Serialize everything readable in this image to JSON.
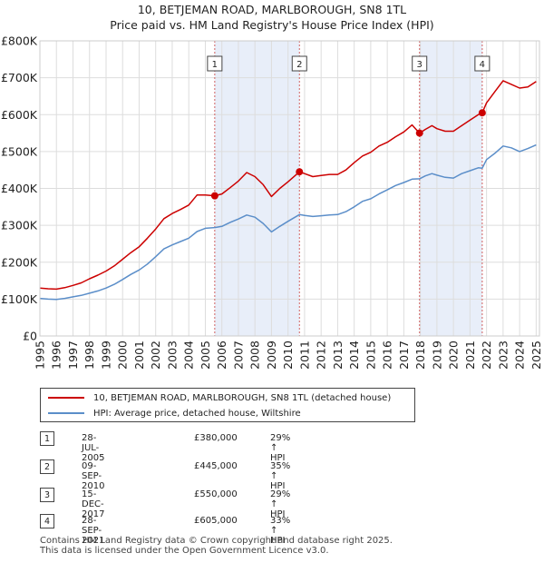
{
  "title": "10, BETJEMAN ROAD, MARLBOROUGH, SN8 1TL",
  "subtitle": "Price paid vs. HM Land Registry's House Price Index (HPI)",
  "chart_data": {
    "type": "line",
    "xlim": [
      1995,
      2025.2
    ],
    "ylim": [
      0,
      800000
    ],
    "yticks": [
      {
        "value": 0,
        "label": "£0"
      },
      {
        "value": 100000,
        "label": "£100K"
      },
      {
        "value": 200000,
        "label": "£200K"
      },
      {
        "value": 300000,
        "label": "£300K"
      },
      {
        "value": 400000,
        "label": "£400K"
      },
      {
        "value": 500000,
        "label": "£500K"
      },
      {
        "value": 600000,
        "label": "£600K"
      },
      {
        "value": 700000,
        "label": "£700K"
      },
      {
        "value": 800000,
        "label": "£800K"
      }
    ],
    "xticks": [
      "1995",
      "1996",
      "1997",
      "1998",
      "1999",
      "2000",
      "2001",
      "2002",
      "2003",
      "2004",
      "2005",
      "2006",
      "2007",
      "2008",
      "2009",
      "2010",
      "2011",
      "2012",
      "2013",
      "2014",
      "2015",
      "2016",
      "2017",
      "2018",
      "2019",
      "2020",
      "2021",
      "2022",
      "2023",
      "2024",
      "2025"
    ],
    "shaded_ranges": [
      [
        2005.57,
        2010.69
      ],
      [
        2017.95,
        2021.74
      ]
    ],
    "colors": {
      "property": "#cc0000",
      "hpi": "#5b8ec9",
      "shade": "#e8eef9",
      "vline": "#d06060",
      "grid": "#dddddd"
    },
    "series": [
      {
        "name": "10, BETJEMAN ROAD, MARLBOROUGH, SN8 1TL (detached house)",
        "points": [
          [
            1995.0,
            130000
          ],
          [
            1995.5,
            128000
          ],
          [
            1996.0,
            127000
          ],
          [
            1996.5,
            131000
          ],
          [
            1997.0,
            137000
          ],
          [
            1997.5,
            144000
          ],
          [
            1998.0,
            155000
          ],
          [
            1998.5,
            165000
          ],
          [
            1999.0,
            176000
          ],
          [
            1999.5,
            190000
          ],
          [
            2000.0,
            208000
          ],
          [
            2000.5,
            226000
          ],
          [
            2001.0,
            242000
          ],
          [
            2001.5,
            265000
          ],
          [
            2002.0,
            290000
          ],
          [
            2002.5,
            318000
          ],
          [
            2003.0,
            332000
          ],
          [
            2003.5,
            343000
          ],
          [
            2004.0,
            355000
          ],
          [
            2004.5,
            382000
          ],
          [
            2005.0,
            382000
          ],
          [
            2005.57,
            380000
          ],
          [
            2006.0,
            385000
          ],
          [
            2006.5,
            402000
          ],
          [
            2007.0,
            420000
          ],
          [
            2007.5,
            443000
          ],
          [
            2008.0,
            432000
          ],
          [
            2008.5,
            410000
          ],
          [
            2009.0,
            378000
          ],
          [
            2009.5,
            400000
          ],
          [
            2010.0,
            418000
          ],
          [
            2010.69,
            445000
          ],
          [
            2011.0,
            440000
          ],
          [
            2011.5,
            432000
          ],
          [
            2012.0,
            435000
          ],
          [
            2012.5,
            438000
          ],
          [
            2013.0,
            438000
          ],
          [
            2013.5,
            450000
          ],
          [
            2014.0,
            470000
          ],
          [
            2014.5,
            488000
          ],
          [
            2015.0,
            498000
          ],
          [
            2015.5,
            515000
          ],
          [
            2016.0,
            525000
          ],
          [
            2016.5,
            540000
          ],
          [
            2017.0,
            553000
          ],
          [
            2017.5,
            572000
          ],
          [
            2017.95,
            550000
          ],
          [
            2018.3,
            560000
          ],
          [
            2018.7,
            570000
          ],
          [
            2019.0,
            562000
          ],
          [
            2019.5,
            555000
          ],
          [
            2020.0,
            555000
          ],
          [
            2020.5,
            570000
          ],
          [
            2021.0,
            585000
          ],
          [
            2021.5,
            600000
          ],
          [
            2021.74,
            605000
          ],
          [
            2022.0,
            632000
          ],
          [
            2022.5,
            662000
          ],
          [
            2023.0,
            692000
          ],
          [
            2023.5,
            682000
          ],
          [
            2024.0,
            672000
          ],
          [
            2024.5,
            675000
          ],
          [
            2025.0,
            690000
          ]
        ]
      },
      {
        "name": "HPI: Average price, detached house, Wiltshire",
        "points": [
          [
            1995.0,
            102000
          ],
          [
            1995.5,
            100000
          ],
          [
            1996.0,
            99000
          ],
          [
            1996.5,
            102000
          ],
          [
            1997.0,
            106000
          ],
          [
            1997.5,
            110000
          ],
          [
            1998.0,
            116000
          ],
          [
            1998.5,
            122000
          ],
          [
            1999.0,
            130000
          ],
          [
            1999.5,
            140000
          ],
          [
            2000.0,
            153000
          ],
          [
            2000.5,
            167000
          ],
          [
            2001.0,
            179000
          ],
          [
            2001.5,
            195000
          ],
          [
            2002.0,
            215000
          ],
          [
            2002.5,
            236000
          ],
          [
            2003.0,
            247000
          ],
          [
            2003.5,
            256000
          ],
          [
            2004.0,
            265000
          ],
          [
            2004.5,
            283000
          ],
          [
            2005.0,
            292000
          ],
          [
            2005.57,
            294000
          ],
          [
            2006.0,
            297000
          ],
          [
            2006.5,
            308000
          ],
          [
            2007.0,
            317000
          ],
          [
            2007.5,
            328000
          ],
          [
            2008.0,
            322000
          ],
          [
            2008.5,
            305000
          ],
          [
            2009.0,
            282000
          ],
          [
            2009.5,
            297000
          ],
          [
            2010.0,
            311000
          ],
          [
            2010.69,
            329000
          ],
          [
            2011.0,
            327000
          ],
          [
            2011.5,
            324000
          ],
          [
            2012.0,
            326000
          ],
          [
            2012.5,
            328000
          ],
          [
            2013.0,
            329000
          ],
          [
            2013.5,
            337000
          ],
          [
            2014.0,
            350000
          ],
          [
            2014.5,
            365000
          ],
          [
            2015.0,
            372000
          ],
          [
            2015.5,
            385000
          ],
          [
            2016.0,
            396000
          ],
          [
            2016.5,
            408000
          ],
          [
            2017.0,
            416000
          ],
          [
            2017.5,
            425000
          ],
          [
            2017.95,
            426000
          ],
          [
            2018.3,
            434000
          ],
          [
            2018.7,
            440000
          ],
          [
            2019.0,
            436000
          ],
          [
            2019.5,
            430000
          ],
          [
            2020.0,
            428000
          ],
          [
            2020.5,
            440000
          ],
          [
            2021.0,
            448000
          ],
          [
            2021.5,
            456000
          ],
          [
            2021.74,
            455000
          ],
          [
            2022.0,
            478000
          ],
          [
            2022.5,
            495000
          ],
          [
            2023.0,
            515000
          ],
          [
            2023.5,
            510000
          ],
          [
            2024.0,
            500000
          ],
          [
            2024.5,
            508000
          ],
          [
            2025.0,
            518000
          ]
        ]
      }
    ],
    "markers": [
      {
        "label": "1",
        "x": 2005.57,
        "y": 380000
      },
      {
        "label": "2",
        "x": 2010.69,
        "y": 445000
      },
      {
        "label": "3",
        "x": 2017.95,
        "y": 550000
      },
      {
        "label": "4",
        "x": 2021.74,
        "y": 605000
      }
    ]
  },
  "legend": {
    "property_label": "10, BETJEMAN ROAD, MARLBOROUGH, SN8 1TL (detached house)",
    "hpi_label": "HPI: Average price, detached house, Wiltshire"
  },
  "sales": [
    {
      "num": "1",
      "date": "28-JUL-2005",
      "price": "£380,000",
      "hpi": "29% ↑ HPI"
    },
    {
      "num": "2",
      "date": "09-SEP-2010",
      "price": "£445,000",
      "hpi": "35% ↑ HPI"
    },
    {
      "num": "3",
      "date": "15-DEC-2017",
      "price": "£550,000",
      "hpi": "29% ↑ HPI"
    },
    {
      "num": "4",
      "date": "28-SEP-2021",
      "price": "£605,000",
      "hpi": "33% ↑ HPI"
    }
  ],
  "footer": {
    "line1": "Contains HM Land Registry data © Crown copyright and database right 2025.",
    "line2": "This data is licensed under the Open Government Licence v3.0."
  }
}
